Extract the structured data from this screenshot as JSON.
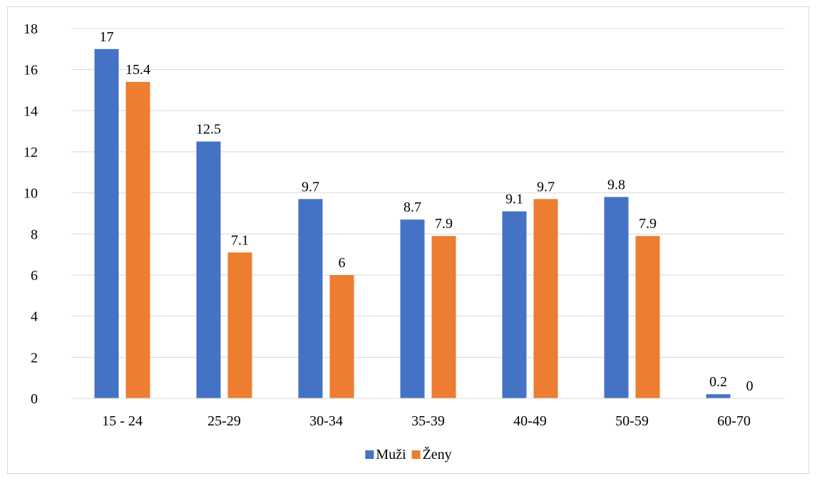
{
  "chart_data": {
    "type": "bar",
    "categories": [
      "15 - 24",
      "25-29",
      "30-34",
      "35-39",
      "40-49",
      "50-59",
      "60-70"
    ],
    "series": [
      {
        "name": "Muži",
        "color": "#4472C4",
        "values": [
          17,
          12.5,
          9.7,
          8.7,
          9.1,
          9.8,
          0.2
        ],
        "labels": [
          "17",
          "12.5",
          "9.7",
          "8.7",
          "9.1",
          "9.8",
          "0.2"
        ]
      },
      {
        "name": "Ženy",
        "color": "#ED7D31",
        "values": [
          15.4,
          7.1,
          6,
          7.9,
          9.7,
          7.9,
          0
        ],
        "labels": [
          "15.4",
          "7.1",
          "6",
          "7.9",
          "9.7",
          "7.9",
          "0"
        ]
      }
    ],
    "yticks": [
      "0",
      "2",
      "4",
      "6",
      "8",
      "10",
      "12",
      "14",
      "16",
      "18"
    ],
    "ylim": [
      0,
      18
    ],
    "grid": true,
    "gridColor": "#d9d9d9",
    "legend_position": "bottom"
  }
}
